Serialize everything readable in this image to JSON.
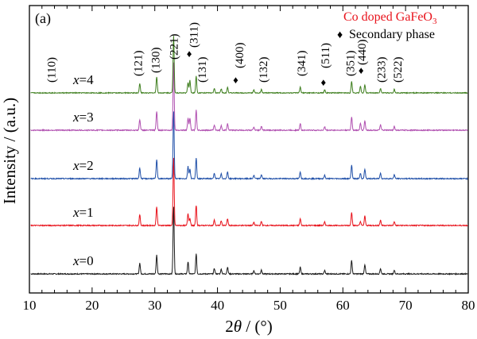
{
  "panel_label": "(a)",
  "legend": {
    "title": "Co doped GaFeO",
    "title_sub": "3",
    "title_color": "#e8121b",
    "marker_text": "Secondary phase"
  },
  "chart_data": {
    "type": "line",
    "title": "",
    "xlabel_prefix": "2",
    "xlabel_theta": "θ",
    "xlabel_suffix": " / (°)",
    "ylabel": "Intensity / (a.u.)",
    "xlim": [
      10,
      80
    ],
    "xticks": [
      "10",
      "20",
      "30",
      "40",
      "50",
      "60",
      "70",
      "80"
    ],
    "grid": false,
    "series": [
      {
        "name": "x=0",
        "label_var": "x",
        "label_val": "=0",
        "color": "#1a1a1a",
        "baseline": 0
      },
      {
        "name": "x=1",
        "label_var": "x",
        "label_val": "=1",
        "color": "#e8121b",
        "baseline": 1
      },
      {
        "name": "x=2",
        "label_var": "x",
        "label_val": "=2",
        "color": "#1f4fa8",
        "baseline": 2
      },
      {
        "name": "x=3",
        "label_var": "x",
        "label_val": "=3",
        "color": "#b04fb0",
        "baseline": 3
      },
      {
        "name": "x=4",
        "label_var": "x",
        "label_val": "=4",
        "color": "#3f7f1f",
        "baseline": 4
      }
    ],
    "peaks": [
      {
        "pos": 27.6,
        "h": 0.16
      },
      {
        "pos": 30.3,
        "h": 0.28
      },
      {
        "pos": 33.0,
        "h": 1.0
      },
      {
        "pos": 35.3,
        "h": 0.18
      },
      {
        "pos": 36.6,
        "h": 0.3
      },
      {
        "pos": 39.5,
        "h": 0.08
      },
      {
        "pos": 40.6,
        "h": 0.07
      },
      {
        "pos": 41.6,
        "h": 0.1
      },
      {
        "pos": 45.8,
        "h": 0.05
      },
      {
        "pos": 47.0,
        "h": 0.06
      },
      {
        "pos": 53.2,
        "h": 0.1
      },
      {
        "pos": 57.1,
        "h": 0.05
      },
      {
        "pos": 61.4,
        "h": 0.2
      },
      {
        "pos": 63.5,
        "h": 0.14
      },
      {
        "pos": 66.0,
        "h": 0.08
      },
      {
        "pos": 68.2,
        "h": 0.06
      }
    ],
    "secondary_peaks": [
      {
        "pos": 35.6,
        "h": 0.18
      },
      {
        "pos": 62.8,
        "h": 0.1
      }
    ],
    "annotations": [
      {
        "text": "(110)",
        "x": 13.5
      },
      {
        "text": "(121)",
        "x": 27.3
      },
      {
        "text": "(130)",
        "x": 30.1
      },
      {
        "text": "(221)",
        "x": 33.0
      },
      {
        "text": "(311)",
        "x": 36.2
      },
      {
        "text": "(131)",
        "x": 37.5
      },
      {
        "text": "(400)",
        "x": 43.5
      },
      {
        "text": "(132)",
        "x": 47.3
      },
      {
        "text": "(341)",
        "x": 53.4
      },
      {
        "text": "(511)",
        "x": 57.2
      },
      {
        "text": "(351)",
        "x": 61.2
      },
      {
        "text": "(440)",
        "x": 63.0
      },
      {
        "text": "(233)",
        "x": 66.1
      },
      {
        "text": "(522)",
        "x": 68.7
      }
    ],
    "markers": [
      {
        "symbol": "♦",
        "x": 35.5
      },
      {
        "symbol": "♦",
        "x": 42.9
      },
      {
        "symbol": "♦",
        "x": 56.9
      },
      {
        "symbol": "♦",
        "x": 62.9
      }
    ]
  }
}
